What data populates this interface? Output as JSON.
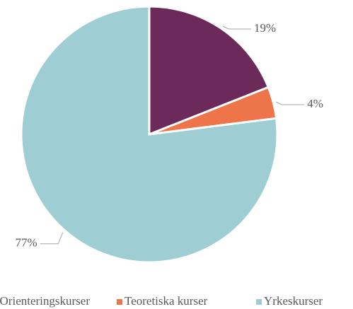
{
  "chart_data": {
    "type": "pie",
    "categories": [
      "Orienteringskurser",
      "Teoretiska kurser",
      "Yrkeskurser"
    ],
    "values": [
      19,
      4,
      77
    ],
    "value_labels": [
      "19%",
      "4%",
      "77%"
    ],
    "colors": [
      "#6b2a5a",
      "#ee7549",
      "#9ecdd4"
    ],
    "legend": "bottom"
  }
}
